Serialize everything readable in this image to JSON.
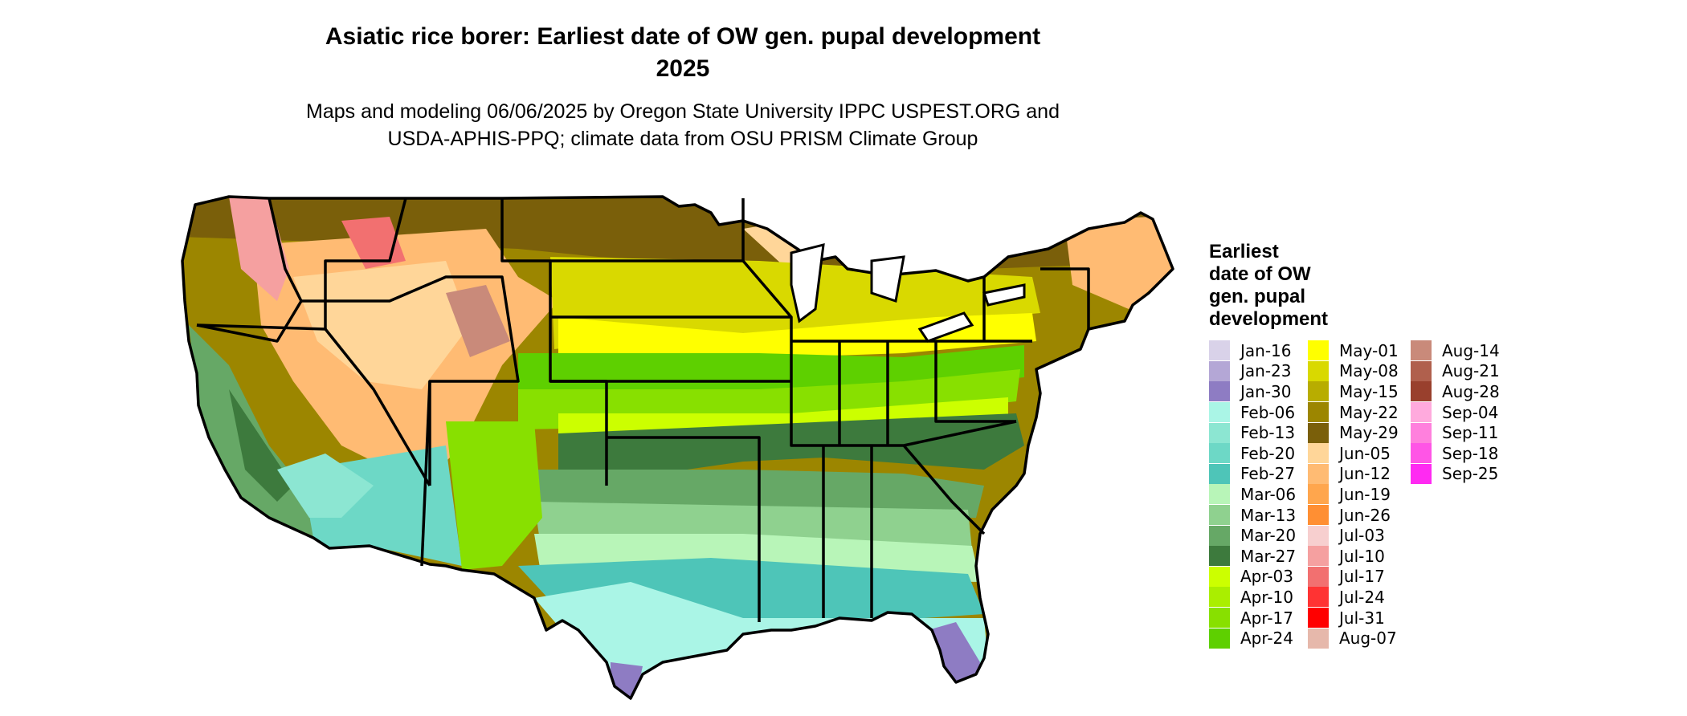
{
  "title_line1": "Asiatic rice borer: Earliest date of OW gen. pupal development",
  "title_line2": "2025",
  "subtitle_line1": "Maps and modeling 06/06/2025 by Oregon State University IPPC USPEST.ORG and",
  "subtitle_line2": "USDA-APHIS-PPQ; climate data from OSU PRISM Climate Group",
  "legend": {
    "title_lines": [
      "Earliest",
      "date of OW",
      "gen. pupal",
      "development"
    ],
    "items": [
      {
        "label": "Jan-16",
        "color": "#d9d2e9"
      },
      {
        "label": "Jan-23",
        "color": "#b4a7d6"
      },
      {
        "label": "Jan-30",
        "color": "#8e7cc3"
      },
      {
        "label": "Feb-06",
        "color": "#aaf5e6"
      },
      {
        "label": "Feb-13",
        "color": "#8ce6d2"
      },
      {
        "label": "Feb-20",
        "color": "#6dd8c6"
      },
      {
        "label": "Feb-27",
        "color": "#4ec5b8"
      },
      {
        "label": "Mar-06",
        "color": "#b8f5b8"
      },
      {
        "label": "Mar-13",
        "color": "#8fd18f"
      },
      {
        "label": "Mar-20",
        "color": "#66a866"
      },
      {
        "label": "Mar-27",
        "color": "#3d7a3d"
      },
      {
        "label": "Apr-03",
        "color": "#ccff00"
      },
      {
        "label": "Apr-10",
        "color": "#aaee00"
      },
      {
        "label": "Apr-17",
        "color": "#88e000"
      },
      {
        "label": "Apr-24",
        "color": "#5ed000"
      },
      {
        "label": "May-01",
        "color": "#ffff00"
      },
      {
        "label": "May-08",
        "color": "#d9d900"
      },
      {
        "label": "May-15",
        "color": "#b8ad00"
      },
      {
        "label": "May-22",
        "color": "#9c8600"
      },
      {
        "label": "May-29",
        "color": "#7a5f0a"
      },
      {
        "label": "Jun-05",
        "color": "#ffd699"
      },
      {
        "label": "Jun-12",
        "color": "#ffbb73"
      },
      {
        "label": "Jun-19",
        "color": "#ffa64d"
      },
      {
        "label": "Jun-26",
        "color": "#ff8f33"
      },
      {
        "label": "Jul-03",
        "color": "#f7cfcf"
      },
      {
        "label": "Jul-10",
        "color": "#f5a0a0"
      },
      {
        "label": "Jul-17",
        "color": "#f27070"
      },
      {
        "label": "Jul-24",
        "color": "#ff3333"
      },
      {
        "label": "Jul-31",
        "color": "#ff0000"
      },
      {
        "label": "Aug-07",
        "color": "#e6b8ab"
      },
      {
        "label": "Aug-14",
        "color": "#c98a7a"
      },
      {
        "label": "Aug-21",
        "color": "#b0604d"
      },
      {
        "label": "Aug-28",
        "color": "#99402d"
      },
      {
        "label": "Sep-04",
        "color": "#ffaadd"
      },
      {
        "label": "Sep-11",
        "color": "#ff80dd"
      },
      {
        "label": "Sep-18",
        "color": "#ff55e6"
      },
      {
        "label": "Sep-25",
        "color": "#ff2af2"
      }
    ]
  }
}
